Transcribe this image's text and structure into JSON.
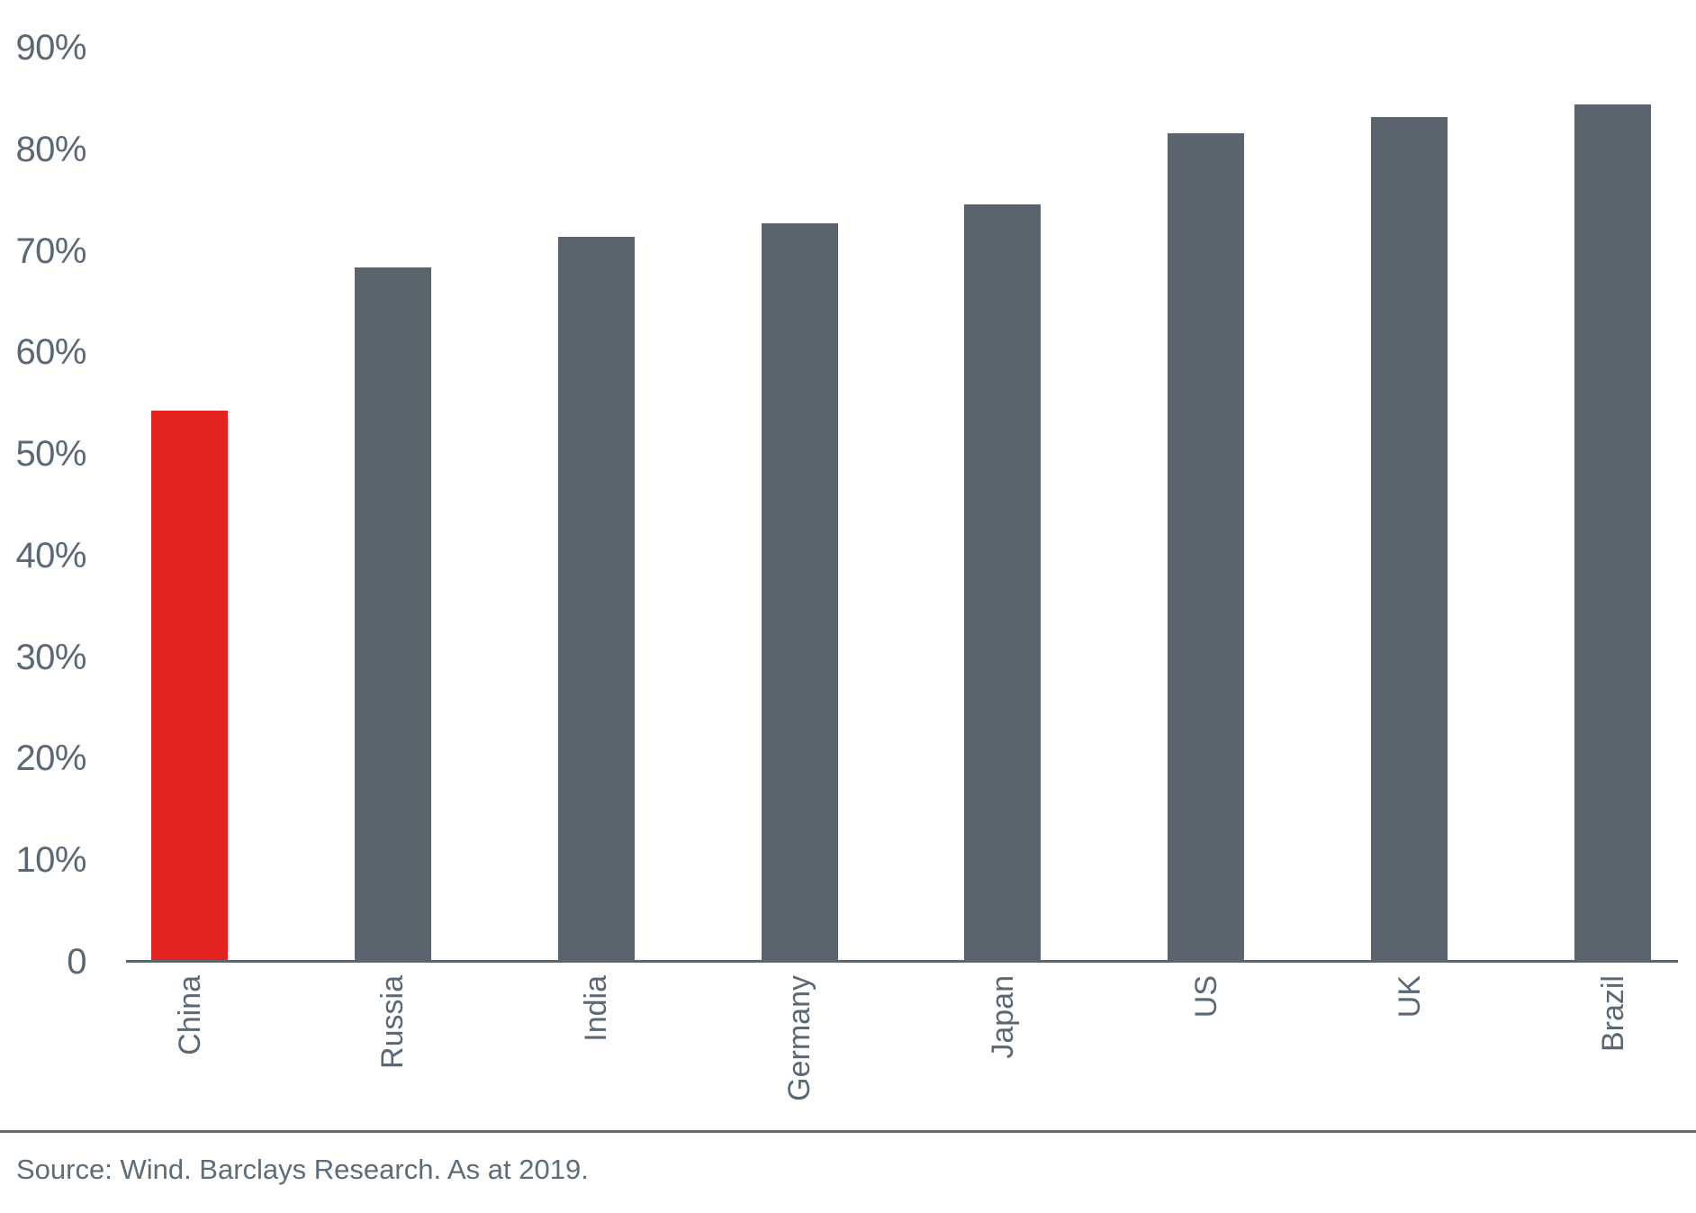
{
  "chart_data": {
    "type": "bar",
    "categories": [
      "China",
      "Russia",
      "India",
      "Germany",
      "Japan",
      "US",
      "UK",
      "Brazil"
    ],
    "values": [
      54.3,
      68.4,
      71.4,
      72.7,
      74.6,
      81.6,
      83.2,
      84.4
    ],
    "unit": "%",
    "ylim": [
      0,
      90
    ],
    "ytick_values": [
      90,
      80,
      70,
      60,
      50,
      40,
      30,
      20,
      10,
      0
    ],
    "ytick_labels": [
      "90%",
      "80%",
      "70%",
      "60%",
      "50%",
      "40%",
      "30%",
      "20%",
      "10%",
      "0"
    ],
    "grid": false,
    "legend": "none",
    "highlight_category": "China",
    "colors": {
      "highlight_bar": "#e2231e",
      "default_bar": "#59646e",
      "axis_line": "#5a6570",
      "tick_text": "#5a6875"
    }
  },
  "footer": {
    "source_text": "Source: Wind. Barclays Research. As at 2019."
  }
}
